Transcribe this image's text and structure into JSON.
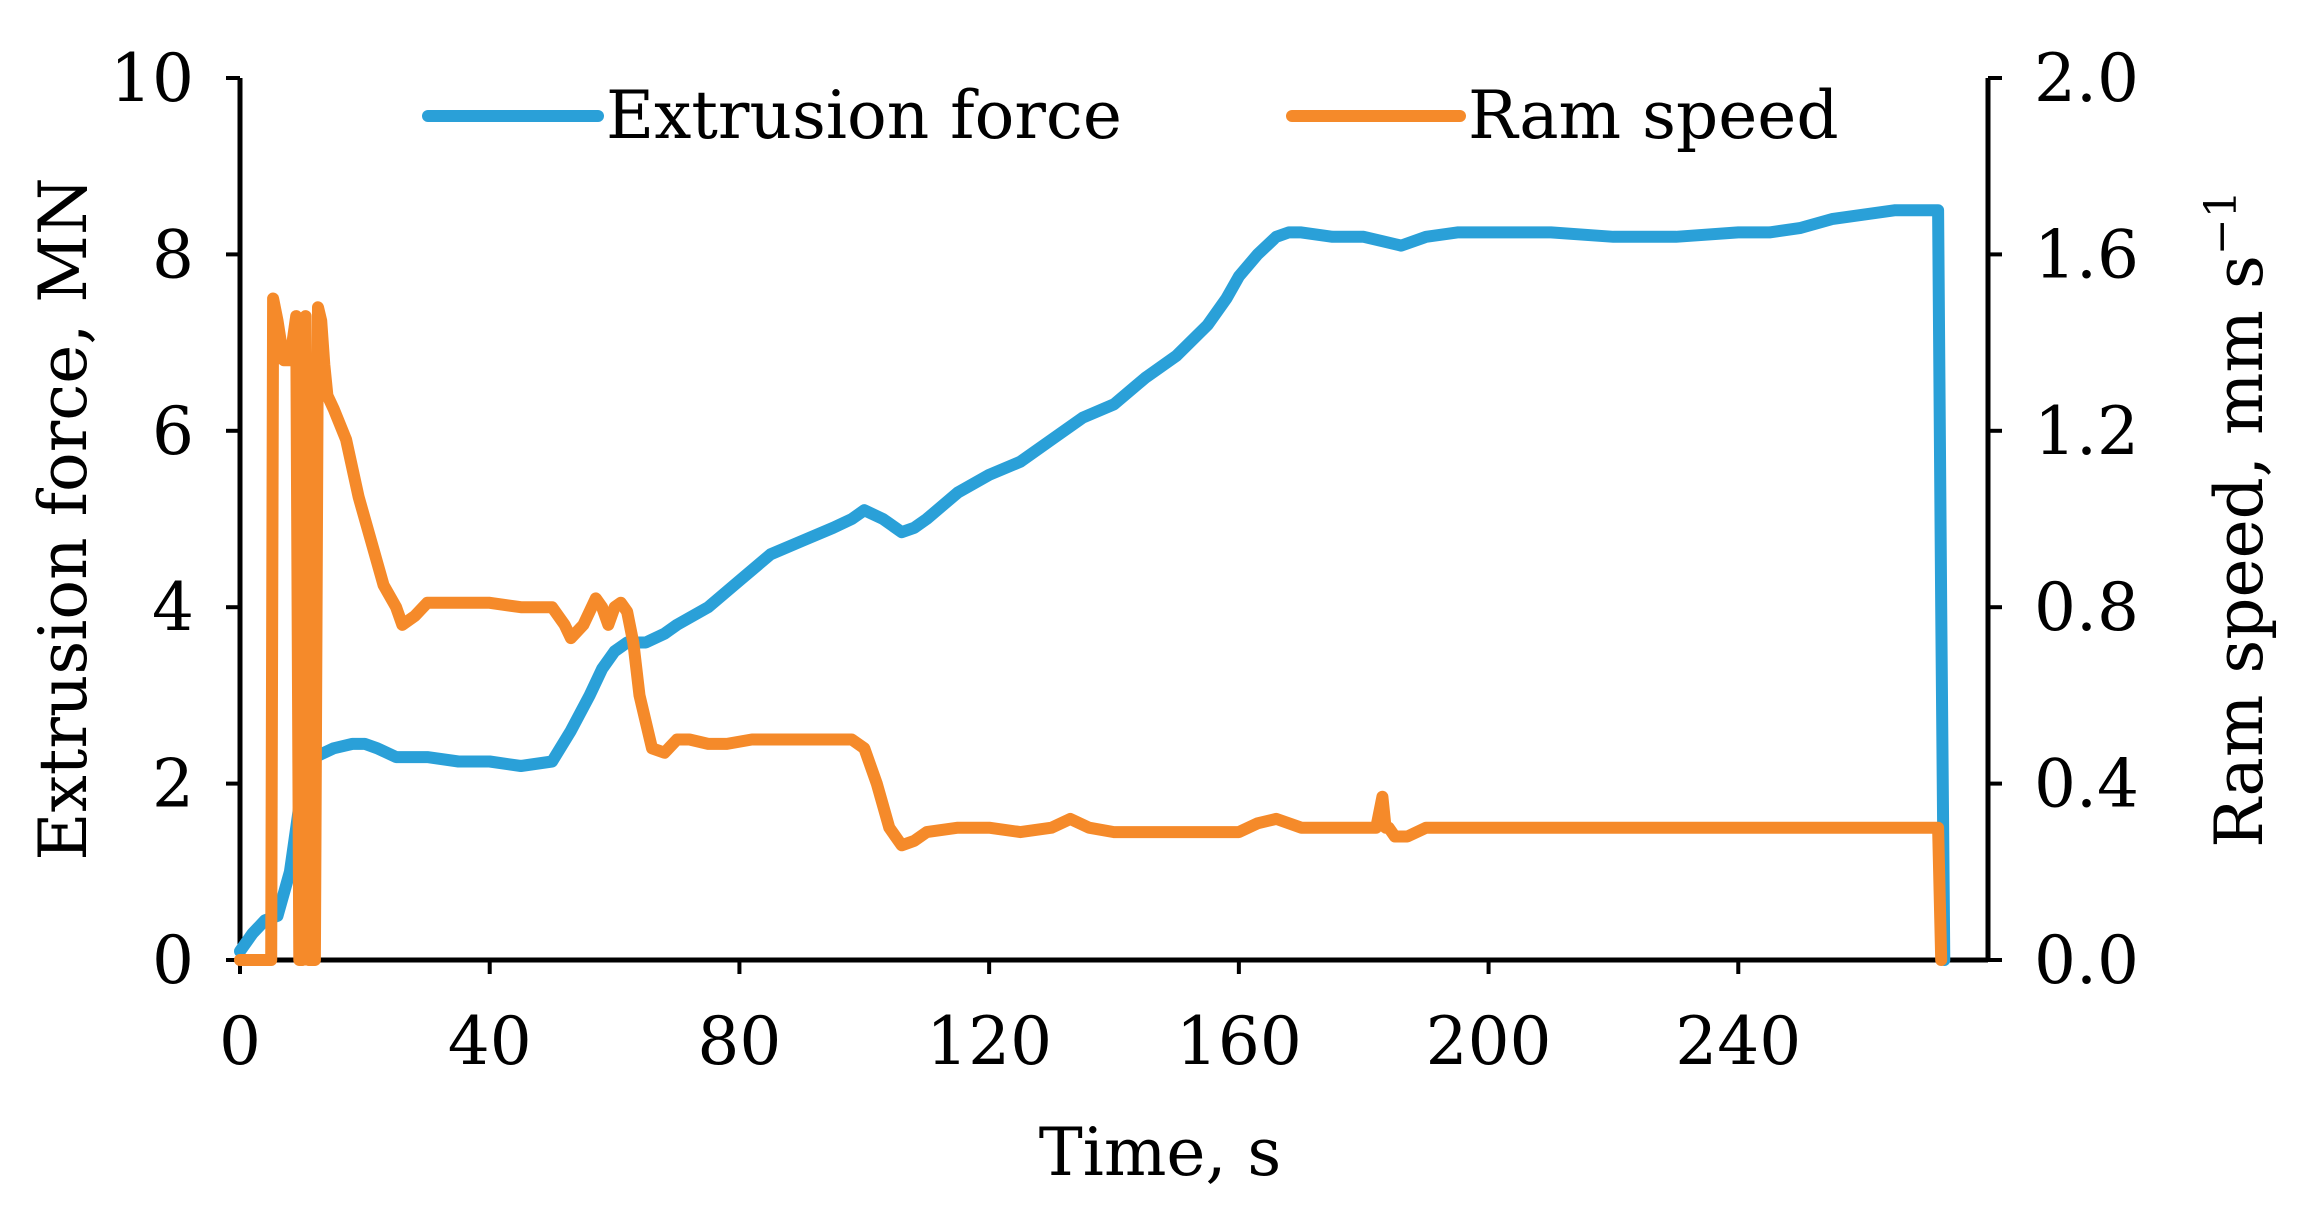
{
  "chart_data": {
    "type": "line",
    "title": "",
    "xlabel": "Time, s",
    "ylabel": "Extrusion force, MN",
    "y2label": "Ram speed, mm s",
    "y2label_superscript": "−1",
    "xlim": [
      0,
      280
    ],
    "ylim": [
      0,
      10
    ],
    "y2lim": [
      0,
      2
    ],
    "xticks": [
      "0",
      "40",
      "80",
      "120",
      "160",
      "200",
      "240"
    ],
    "xtick_values": [
      0,
      40,
      80,
      120,
      160,
      200,
      240
    ],
    "yticks": [
      "0",
      "2",
      "4",
      "6",
      "8",
      "10"
    ],
    "ytick_values": [
      0,
      2,
      4,
      6,
      8,
      10
    ],
    "y2ticks": [
      "0.0",
      "0.4",
      "0.8",
      "1.2",
      "1.6",
      "2.0"
    ],
    "y2tick_values": [
      0,
      0.4,
      0.8,
      1.2,
      1.6,
      2.0
    ],
    "grid": false,
    "legend_position": "top",
    "series": [
      {
        "name": "Extrusion force",
        "axis": "left",
        "color": "#2aa0d8",
        "x": [
          0,
          2,
          4,
          6,
          8,
          9,
          10,
          12,
          15,
          18,
          20,
          22,
          25,
          30,
          35,
          40,
          45,
          50,
          53,
          56,
          58,
          60,
          62,
          65,
          68,
          70,
          75,
          80,
          85,
          90,
          95,
          98,
          100,
          103,
          106,
          108,
          110,
          115,
          120,
          125,
          130,
          135,
          140,
          145,
          150,
          155,
          158,
          160,
          163,
          166,
          168,
          170,
          175,
          180,
          183,
          186,
          190,
          195,
          200,
          210,
          220,
          230,
          240,
          245,
          250,
          255,
          260,
          265,
          270,
          272,
          272.5,
          273
        ],
        "values": [
          0.1,
          0.3,
          0.45,
          0.5,
          1.0,
          1.5,
          2.0,
          2.3,
          2.4,
          2.45,
          2.45,
          2.4,
          2.3,
          2.3,
          2.25,
          2.25,
          2.2,
          2.25,
          2.6,
          3.0,
          3.3,
          3.5,
          3.6,
          3.6,
          3.7,
          3.8,
          4.0,
          4.3,
          4.6,
          4.75,
          4.9,
          5.0,
          5.1,
          5.0,
          4.85,
          4.9,
          5.0,
          5.3,
          5.5,
          5.65,
          5.9,
          6.15,
          6.3,
          6.6,
          6.85,
          7.2,
          7.5,
          7.75,
          8.0,
          8.2,
          8.25,
          8.25,
          8.2,
          8.2,
          8.15,
          8.1,
          8.2,
          8.25,
          8.25,
          8.25,
          8.2,
          8.2,
          8.25,
          8.25,
          8.3,
          8.4,
          8.45,
          8.5,
          8.5,
          8.5,
          4.0,
          0.0
        ]
      },
      {
        "name": "Ram speed",
        "axis": "right",
        "color": "#f58a2a",
        "x": [
          0,
          4,
          5,
          5.3,
          6,
          7,
          8,
          9,
          9.5,
          10,
          10.5,
          11,
          11.5,
          12,
          12.5,
          13,
          13.5,
          14,
          15,
          17,
          19,
          21,
          23,
          25,
          26,
          28,
          30,
          33,
          36,
          40,
          45,
          50,
          52,
          53,
          55,
          57,
          58,
          59,
          60,
          61,
          62,
          63,
          64,
          66,
          68,
          70,
          72,
          75,
          78,
          82,
          86,
          90,
          95,
          98,
          100,
          102,
          104,
          106,
          108,
          110,
          115,
          120,
          125,
          130,
          133,
          136,
          140,
          150,
          160,
          163,
          166,
          170,
          175,
          180,
          182,
          183,
          183.5,
          184,
          185,
          187,
          190,
          195,
          200,
          220,
          240,
          260,
          265,
          270,
          272,
          272.5
        ],
        "values": [
          0,
          0,
          0,
          1.5,
          1.45,
          1.36,
          1.36,
          1.46,
          0,
          0,
          1.46,
          0,
          0,
          0,
          1.48,
          1.45,
          1.35,
          1.28,
          1.25,
          1.18,
          1.05,
          0.95,
          0.85,
          0.8,
          0.76,
          0.78,
          0.81,
          0.81,
          0.81,
          0.81,
          0.8,
          0.8,
          0.76,
          0.73,
          0.76,
          0.82,
          0.8,
          0.76,
          0.8,
          0.81,
          0.79,
          0.72,
          0.6,
          0.48,
          0.47,
          0.5,
          0.5,
          0.49,
          0.49,
          0.5,
          0.5,
          0.5,
          0.5,
          0.5,
          0.48,
          0.4,
          0.3,
          0.26,
          0.27,
          0.29,
          0.3,
          0.3,
          0.29,
          0.3,
          0.32,
          0.3,
          0.29,
          0.29,
          0.29,
          0.31,
          0.32,
          0.3,
          0.3,
          0.3,
          0.3,
          0.37,
          0.3,
          0.3,
          0.28,
          0.28,
          0.3,
          0.3,
          0.3,
          0.3,
          0.3,
          0.3,
          0.3,
          0.3,
          0.3,
          0.0
        ]
      }
    ]
  }
}
